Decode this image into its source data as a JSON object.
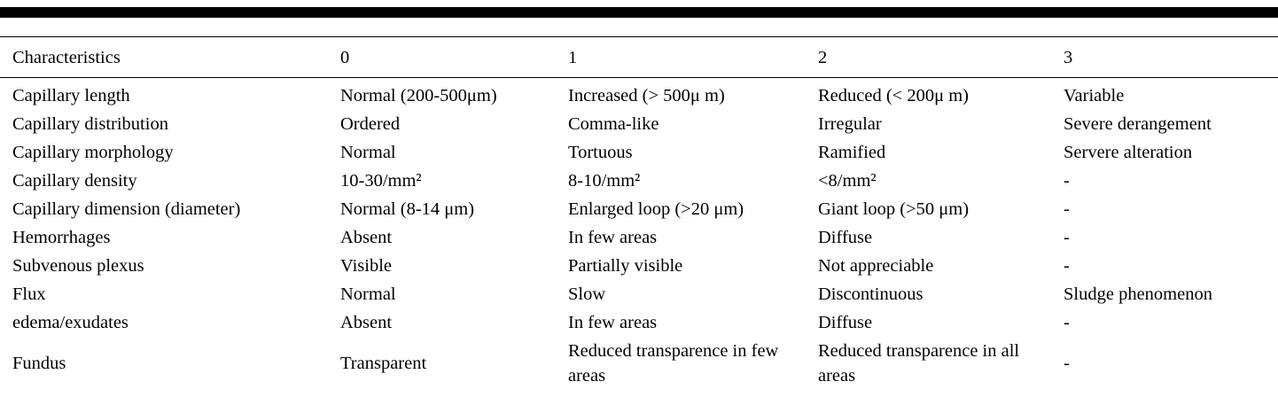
{
  "table": {
    "columns": [
      "Characteristics",
      "0",
      "1",
      "2",
      "3"
    ],
    "rows": [
      [
        "Capillary length",
        "Normal (200-500μm)",
        "Increased (> 500μ m)",
        "Reduced (< 200μ m)",
        "Variable"
      ],
      [
        "Capillary distribution",
        "Ordered",
        "Comma-like",
        "Irregular",
        "Severe derangement"
      ],
      [
        "Capillary morphology",
        "Normal",
        "Tortuous",
        "Ramified",
        "Servere alteration"
      ],
      [
        "Capillary density",
        "10-30/mm²",
        "8-10/mm²",
        "<8/mm²",
        "-"
      ],
      [
        "Capillary dimension (diameter)",
        "Normal (8-14 μm)",
        "Enlarged loop (>20 μm)",
        "Giant loop (>50 μm)",
        "-"
      ],
      [
        "Hemorrhages",
        "Absent",
        "In few areas",
        "Diffuse",
        "-"
      ],
      [
        "Subvenous plexus",
        "Visible",
        "Partially visible",
        "Not appreciable",
        "-"
      ],
      [
        "Flux",
        "Normal",
        "Slow",
        "Discontinuous",
        "Sludge phenomenon"
      ],
      [
        "edema/exudates",
        "Absent",
        "In few areas",
        "Diffuse",
        "-"
      ],
      [
        "Fundus",
        "Transparent",
        "Reduced transparence in few areas",
        "Reduced transparence in all areas",
        "-"
      ]
    ]
  }
}
